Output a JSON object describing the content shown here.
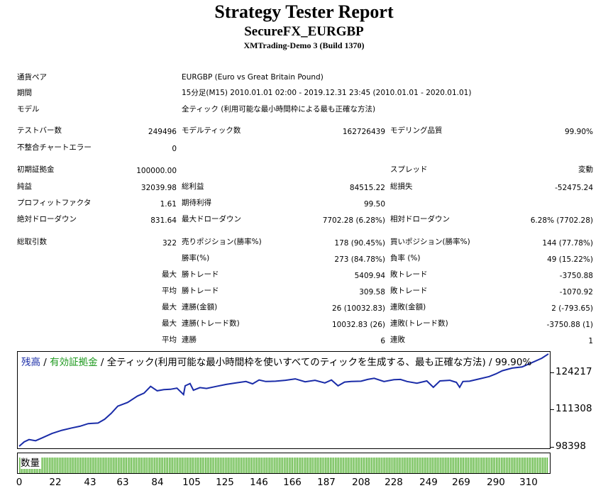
{
  "header": {
    "title": "Strategy Tester Report",
    "subtitle": "SecureFX_EURGBP",
    "server": "XMTrading-Demo 3 (Build 1370)"
  },
  "info": {
    "symbol_label": "通貨ペア",
    "symbol_value": "EURGBP (Euro vs Great Britain Pound)",
    "period_label": "期間",
    "period_value": "15分足(M15) 2010.01.01 02:00 - 2019.12.31 23:45 (2010.01.01 - 2020.01.01)",
    "model_label": "モデル",
    "model_value": "全ティック (利用可能な最小時間枠による最も正確な方法)"
  },
  "stats": {
    "bars_label": "テストバー数",
    "bars_value": "249496",
    "ticks_label": "モデルティック数",
    "ticks_value": "162726439",
    "quality_label": "モデリング品質",
    "quality_value": "99.90%",
    "mismatch_label": "不整合チャートエラー",
    "mismatch_value": "0",
    "deposit_label": "初期証拠金",
    "deposit_value": "100000.00",
    "spread_label": "スプレッド",
    "spread_value": "変動",
    "netprofit_label": "純益",
    "netprofit_value": "32039.98",
    "grossprofit_label": "総利益",
    "grossprofit_value": "84515.22",
    "grossloss_label": "総損失",
    "grossloss_value": "-52475.24",
    "pf_label": "プロフィットファクタ",
    "pf_value": "1.61",
    "expected_label": "期待利得",
    "expected_value": "99.50",
    "absdd_label": "絶対ドローダウン",
    "absdd_value": "831.64",
    "maxdd_label": "最大ドローダウン",
    "maxdd_value": "7702.28 (6.28%)",
    "reldd_label": "相対ドローダウン",
    "reldd_value": "6.28% (7702.28)",
    "trades_label": "総取引数",
    "trades_value": "322",
    "short_label": "売りポジション(勝率%)",
    "short_value": "178 (90.45%)",
    "long_label": "買いポジション(勝率%)",
    "long_value": "144 (77.78%)",
    "winpct_label": "勝率(%)",
    "winpct_value": "273 (84.78%)",
    "losspct_label": "負率 (%)",
    "losspct_value": "49 (15.22%)",
    "max_label": "最大",
    "avg_label": "平均",
    "largest_win_label": "勝トレード",
    "largest_win_value": "5409.94",
    "largest_loss_label": "敗トレード",
    "largest_loss_value": "-3750.88",
    "avg_win_label": "勝トレード",
    "avg_win_value": "309.58",
    "avg_loss_label": "敗トレード",
    "avg_loss_value": "-1070.92",
    "consec_wins_money_label": "連勝(金額)",
    "consec_wins_money_value": "26 (10032.83)",
    "consec_losses_money_label": "連敗(金額)",
    "consec_losses_money_value": "2 (-793.65)",
    "consec_profit_label": "連勝(トレード数)",
    "consec_profit_value": "10032.83 (26)",
    "consec_loss_label": "連敗(トレード数)",
    "consec_loss_value": "-3750.88 (1)",
    "avg_consec_wins_label": "連勝",
    "avg_consec_wins_value": "6",
    "avg_consec_losses_label": "連敗",
    "avg_consec_losses_value": "1"
  },
  "chart_legend": {
    "balance": "残高",
    "sep1": " / ",
    "equity": "有効証拠金",
    "sep2": " / ",
    "rest": "全ティック(利用可能な最小時間枠を使いすべてのティックを生成する、最も正確な方法) / 99.90%"
  },
  "volume_label": "数量",
  "colors": {
    "balance": "#1a2ca8",
    "equity": "#1f9a1f",
    "volume": "#4caf2a"
  },
  "chart_data": {
    "type": "line",
    "series": [
      {
        "name": "残高",
        "x": [
          0,
          3,
          6,
          10,
          14,
          20,
          26,
          32,
          37,
          42,
          48,
          52,
          56,
          60,
          66,
          72,
          76,
          80,
          84,
          88,
          92,
          96,
          100,
          101,
          104,
          106,
          110,
          114,
          120,
          126,
          132,
          138,
          142,
          146,
          150,
          156,
          162,
          168,
          174,
          180,
          186,
          190,
          194,
          198,
          202,
          208,
          212,
          216,
          222,
          228,
          232,
          236,
          242,
          248,
          252,
          256,
          262,
          266,
          268,
          270,
          274,
          280,
          286,
          290,
          294,
          300,
          306,
          312,
          318,
          322
        ],
        "values": [
          98700,
          100200,
          101000,
          100600,
          101600,
          103100,
          104200,
          105000,
          105600,
          106500,
          106700,
          108000,
          110000,
          112500,
          113800,
          116000,
          117000,
          119300,
          117800,
          118200,
          118300,
          118700,
          116500,
          119500,
          120300,
          118000,
          118900,
          118600,
          119300,
          120000,
          120500,
          121000,
          120200,
          121500,
          121000,
          121100,
          121400,
          121900,
          120900,
          121400,
          120500,
          121500,
          119500,
          120800,
          121000,
          121100,
          121700,
          122100,
          121000,
          121600,
          121700,
          121000,
          120400,
          121200,
          119000,
          121200,
          121400,
          120700,
          119000,
          121000,
          121100,
          121900,
          122700,
          123600,
          124700,
          125600,
          126000,
          127500,
          129000,
          130500
        ]
      }
    ],
    "xlabel": "",
    "ylabel": "",
    "ytick_values": [
      98398,
      111308,
      124217
    ],
    "ylim": [
      98000,
      131200
    ],
    "xlim": [
      0,
      322
    ],
    "xticks": [
      0,
      22,
      43,
      63,
      84,
      105,
      125,
      146,
      166,
      187,
      208,
      228,
      249,
      269,
      290,
      310
    ],
    "volume": "1 per trade, 322 trades"
  }
}
